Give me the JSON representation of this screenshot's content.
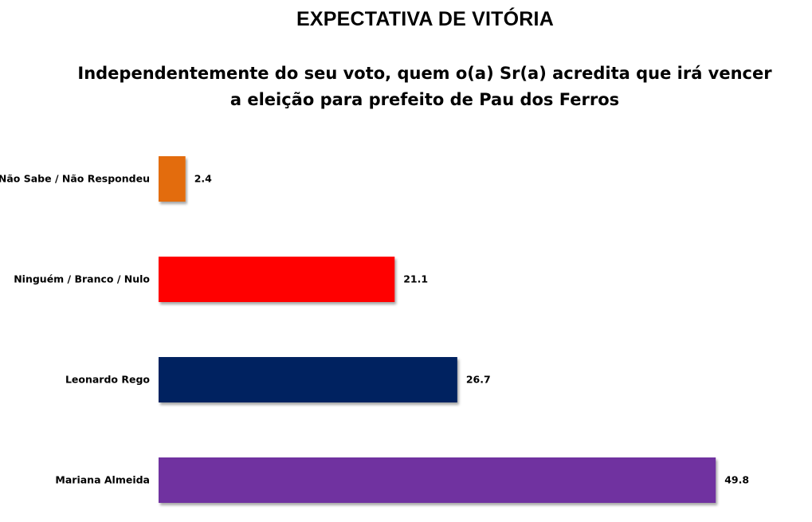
{
  "chart_data": {
    "type": "bar",
    "orientation": "horizontal",
    "title": "EXPECTATIVA DE VITÓRIA",
    "subtitle": "Independentemente do seu voto, quem o(a) Sr(a) acredita que irá vencer a eleição para prefeito de Pau dos Ferros",
    "categories": [
      "Não Sabe / Não Respondeu",
      "Ninguém / Branco / Nulo",
      "Leonardo Rego",
      "Mariana Almeida"
    ],
    "values": [
      2.4,
      21.1,
      26.7,
      49.8
    ],
    "value_labels": [
      "2.4",
      "21.1",
      "26.7",
      "49.8"
    ],
    "colors": [
      "#E36C0A",
      "#FF0000",
      "#002060",
      "#7030A0"
    ],
    "xlim": [
      0,
      50
    ],
    "grid": false,
    "legend": "none"
  }
}
